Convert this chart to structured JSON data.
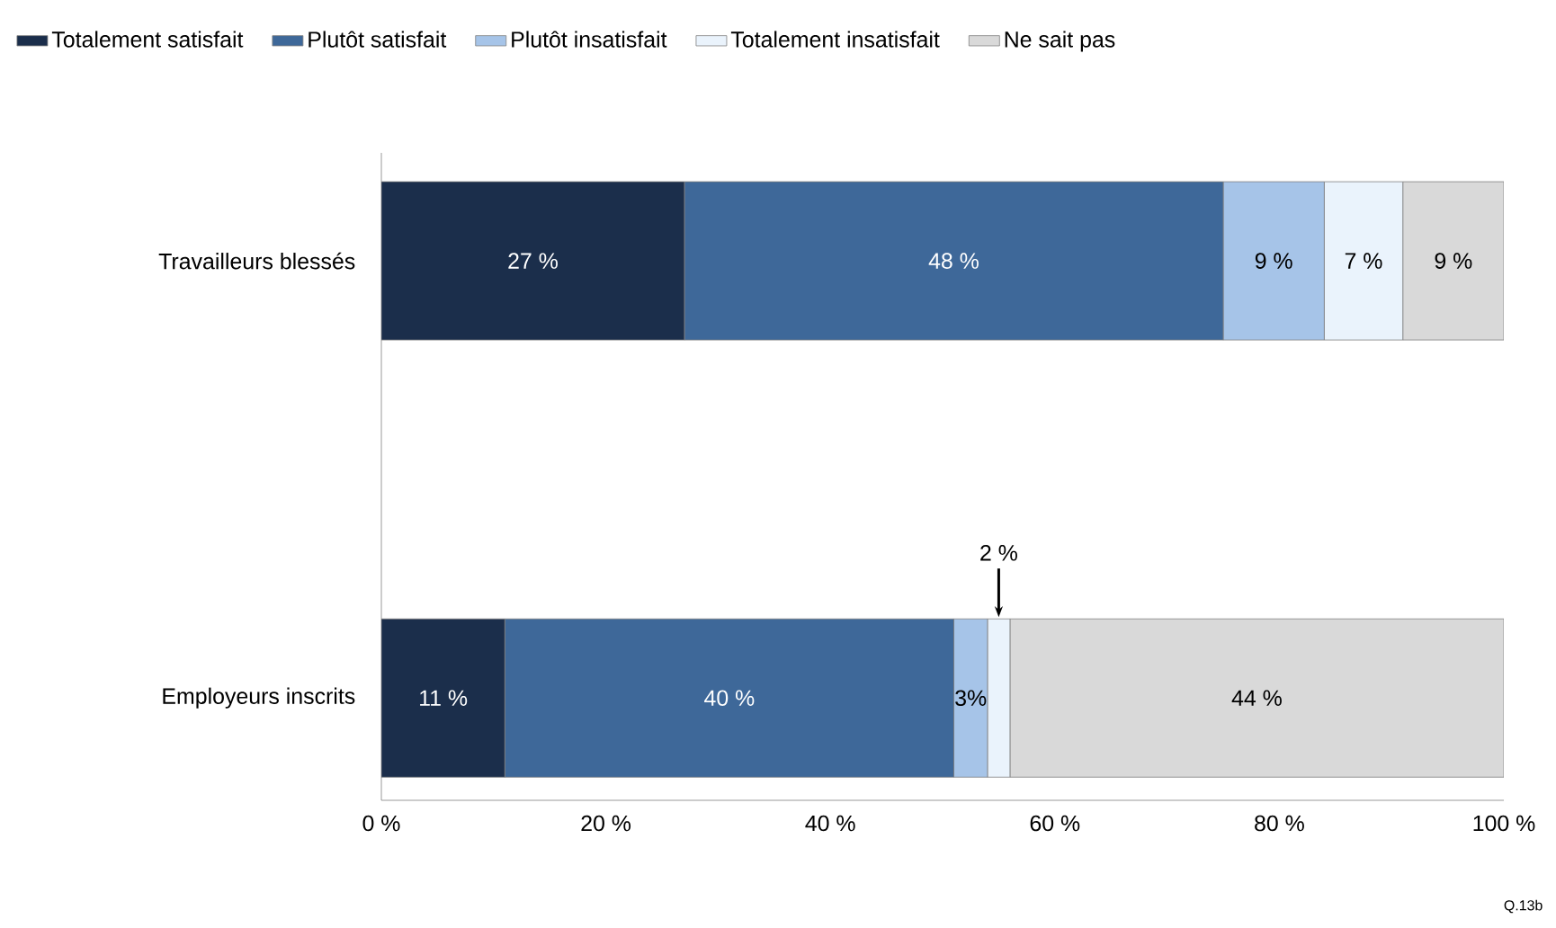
{
  "chart_data": {
    "type": "bar",
    "orientation": "horizontal",
    "stacked": true,
    "legend": "top",
    "categories": [
      "Travailleurs blessés",
      "Employeurs inscrits"
    ],
    "series": [
      {
        "name": "Totalement satisfait",
        "color": "#1b2e4b",
        "values": [
          27,
          11
        ],
        "value_labels": [
          "27 %",
          "11 %"
        ]
      },
      {
        "name": "Plutôt satisfait",
        "color": "#3e6899",
        "values": [
          48,
          40
        ],
        "value_labels": [
          "48 %",
          "40 %"
        ]
      },
      {
        "name": "Plutôt insatisfait",
        "color": "#a6c4e8",
        "values": [
          9,
          3
        ],
        "value_labels": [
          "9 %",
          "3%"
        ]
      },
      {
        "name": "Totalement insatisfait",
        "color": "#eaf3fc",
        "values": [
          7,
          2
        ],
        "value_labels": [
          "7 %",
          "2 %"
        ]
      },
      {
        "name": "Ne sait pas",
        "color": "#d9d9d9",
        "values": [
          9,
          44
        ],
        "value_labels": [
          "9 %",
          "44 %"
        ]
      }
    ],
    "xlim": [
      0,
      100
    ],
    "xticks": [
      {
        "value": 0,
        "label": "0 %"
      },
      {
        "value": 20,
        "label": "20 %"
      },
      {
        "value": 40,
        "label": "40 %"
      },
      {
        "value": 60,
        "label": "60 %"
      },
      {
        "value": 80,
        "label": "80 %"
      },
      {
        "value": 100,
        "label": "100 %"
      }
    ],
    "annotations": [
      "Q.13b"
    ]
  }
}
